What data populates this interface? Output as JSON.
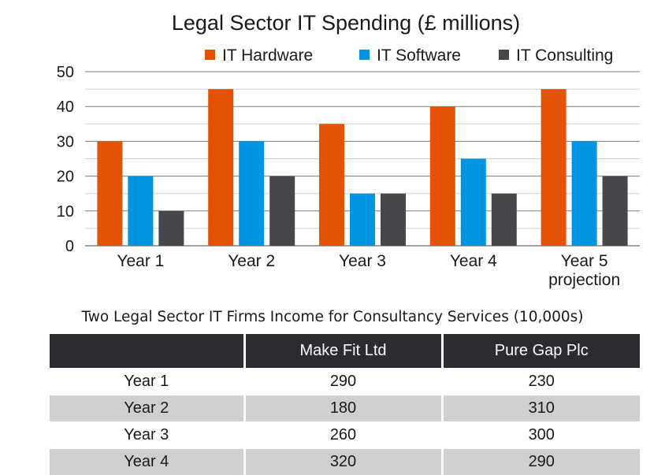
{
  "chart_data": {
    "type": "bar",
    "title": "Legal Sector IT Spending (£ millions)",
    "categories": [
      [
        "Year 1"
      ],
      [
        "Year 2"
      ],
      [
        "Year 3"
      ],
      [
        "Year 4"
      ],
      [
        "Year 5",
        "projection"
      ]
    ],
    "series": [
      {
        "name": "IT Hardware",
        "color": "#e35205",
        "values": [
          30,
          45,
          35,
          40,
          45
        ]
      },
      {
        "name": "IT Software",
        "color": "#0095e0",
        "values": [
          20,
          30,
          15,
          25,
          30
        ]
      },
      {
        "name": "IT Consulting",
        "color": "#47464b",
        "values": [
          10,
          20,
          15,
          15,
          20
        ]
      }
    ],
    "ylim": [
      0,
      50
    ],
    "yticks": [
      0,
      10,
      20,
      30,
      40,
      50
    ],
    "grid": true,
    "legend_position": "top-right"
  },
  "table": {
    "title": "Two Legal Sector IT Firms Income for Consultancy Services (10,000s)",
    "headers": [
      "",
      "Make Fit Ltd",
      "Pure Gap Plc"
    ],
    "rows": [
      {
        "label": "Year 1",
        "values": [
          "290",
          "230"
        ]
      },
      {
        "label": "Year 2",
        "values": [
          "180",
          "310"
        ]
      },
      {
        "label": "Year 3",
        "values": [
          "260",
          "300"
        ]
      },
      {
        "label": "Year 4",
        "values": [
          "320",
          "290"
        ]
      }
    ],
    "header_color": "#2d2b31",
    "stripe_color": "#cfcfcf"
  }
}
